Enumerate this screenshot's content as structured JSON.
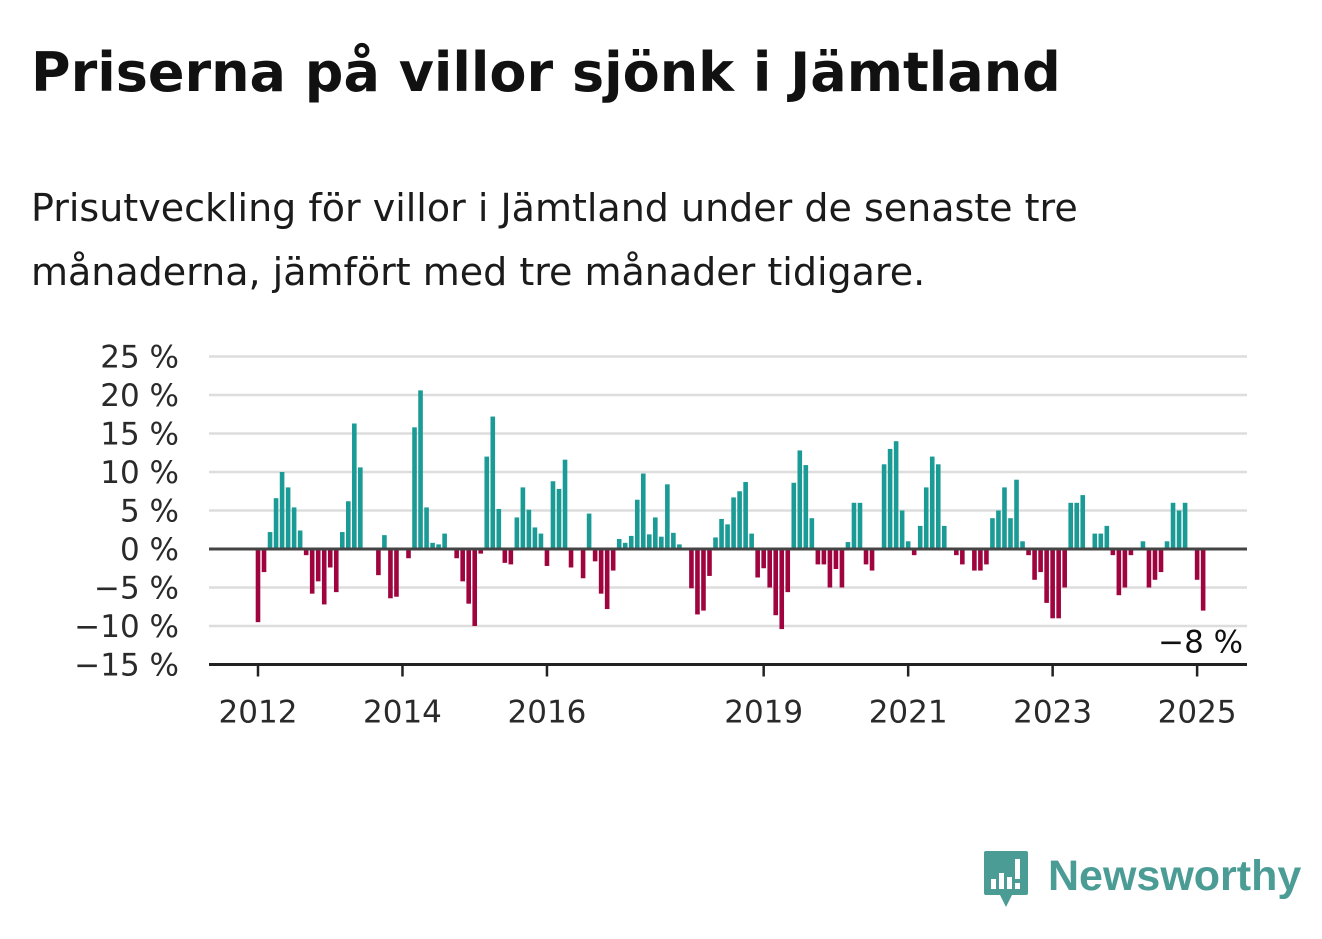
{
  "title": "Priserna på villor sjönk i Jämtland",
  "subtitle": "Prisutveckling för villor i Jämtland under de senaste tre månaderna, jämfört med tre månader tidigare.",
  "brand": {
    "name": "Newsworthy",
    "color": "#4c9c96",
    "icon": "newsworthy-logo-icon"
  },
  "colors": {
    "positive": "#1a9b96",
    "negative": "#a0043e",
    "zero_line": "#444444",
    "grid": "#dddddd"
  },
  "chart_data": {
    "type": "bar",
    "start": "2012-01",
    "interval": "month",
    "yticks": [
      "25 %",
      "20 %",
      "15 %",
      "10 %",
      "5 %",
      "0 %",
      "−5 %",
      "−10 %",
      "−15 %"
    ],
    "ytick_values": [
      25,
      20,
      15,
      10,
      5,
      0,
      -5,
      -10,
      -15
    ],
    "ylim": [
      -15,
      25
    ],
    "xticks": [
      {
        "label": "2012",
        "date": "2012-01"
      },
      {
        "label": "2014",
        "date": "2014-01"
      },
      {
        "label": "2016",
        "date": "2016-01"
      },
      {
        "label": "2019",
        "date": "2019-01"
      },
      {
        "label": "2021",
        "date": "2021-01"
      },
      {
        "label": "2023",
        "date": "2023-01"
      },
      {
        "label": "2025",
        "date": "2025-01"
      }
    ],
    "last_value_label": "−8 %",
    "grid": true,
    "values": [
      -9.5,
      -3,
      2.2,
      6.6,
      10,
      8,
      5.4,
      2.4,
      -0.8,
      -5.8,
      -4.2,
      -7.2,
      -2.4,
      -5.6,
      2.2,
      6.2,
      16.3,
      10.6,
      0,
      0,
      -3.4,
      1.8,
      -6.4,
      -6.2,
      0,
      -1.2,
      15.8,
      20.6,
      5.4,
      0.8,
      0.6,
      2,
      0,
      -1.2,
      -4.2,
      -7.1,
      -10,
      -0.6,
      12,
      17.2,
      5.2,
      -1.8,
      -2,
      4.1,
      8,
      5.1,
      2.8,
      2,
      -2.2,
      8.8,
      7.8,
      11.6,
      -2.4,
      -0.2,
      -3.8,
      4.6,
      -1.6,
      -5.8,
      -7.8,
      -2.8,
      1.3,
      0.8,
      1.7,
      6.4,
      9.8,
      1.9,
      4.1,
      1.6,
      8.4,
      2.1,
      0.6,
      0,
      -5.1,
      -8.5,
      -8,
      -3.5,
      1.5,
      3.9,
      3.2,
      6.7,
      7.5,
      8.7,
      2,
      -3.7,
      -2.5,
      -5,
      -8.6,
      -10.4,
      -5.6,
      8.6,
      12.8,
      10.9,
      4,
      -2,
      -2,
      -5,
      -2.6,
      -5,
      0.9,
      6,
      6,
      -2,
      -2.8,
      0,
      11,
      13,
      14,
      5,
      1,
      -0.8,
      3,
      8,
      12,
      11,
      3,
      0,
      -0.8,
      -2,
      0,
      -2.8,
      -2.8,
      -2,
      4,
      5,
      8,
      4,
      9,
      1,
      -0.8,
      -4,
      -3,
      -7,
      -9,
      -9,
      -5,
      6,
      6,
      7,
      0,
      2,
      2,
      3,
      -0.8,
      -6,
      -5,
      -0.8,
      0,
      1,
      -5,
      -4,
      -3,
      1,
      6,
      5,
      6,
      0,
      -4,
      -8
    ]
  }
}
